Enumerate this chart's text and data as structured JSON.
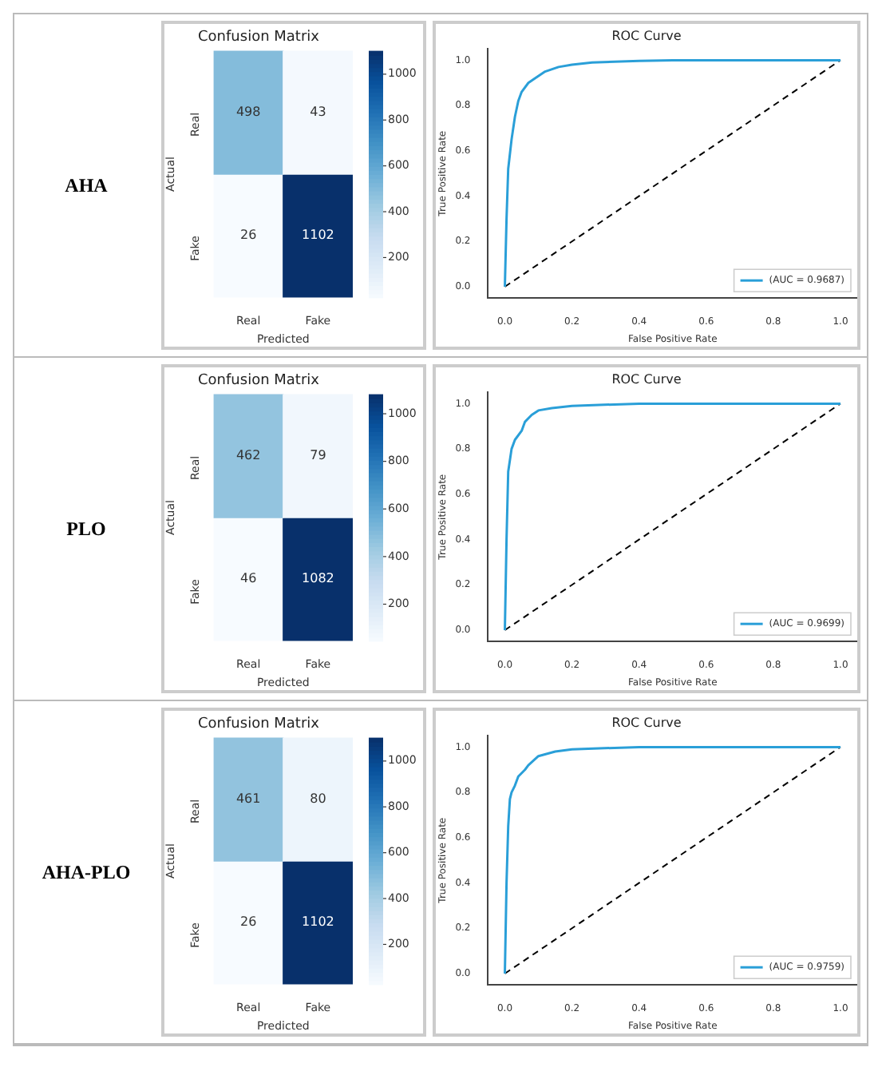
{
  "chart_data": [
    {
      "type": "heatmap",
      "title": "Confusion Matrix",
      "xlabel": "Predicted",
      "ylabel": "Actual",
      "annotations": [
        "AHA"
      ],
      "categories": [
        "Real",
        "Fake"
      ],
      "y_categories": [
        "Real",
        "Fake"
      ],
      "cells": [
        [
          498,
          43
        ],
        [
          26,
          1102
        ]
      ],
      "clim": [
        26,
        1102
      ],
      "cticks": [
        200,
        400,
        600,
        800,
        1000
      ],
      "data_labels": true
    },
    {
      "type": "line",
      "title": "ROC Curve",
      "xlabel": "False Positive Rate",
      "ylabel": "True Positive Rate",
      "legend": "bottom right",
      "xlim": [
        -0.05,
        1.05
      ],
      "ylim": [
        -0.05,
        1.05
      ],
      "xticks": [
        {
          "value": 0,
          "label": "0.0"
        },
        {
          "value": 0.2,
          "label": "0.2"
        },
        {
          "value": 0.4,
          "label": "0.4"
        },
        {
          "value": 0.6,
          "label": "0.6"
        },
        {
          "value": 0.8,
          "label": "0.8"
        },
        {
          "value": 1,
          "label": "1.0"
        }
      ],
      "yticks": [
        {
          "value": 0,
          "label": "0.0"
        },
        {
          "value": 0.2,
          "label": "0.2"
        },
        {
          "value": 0.4,
          "label": "0.4"
        },
        {
          "value": 0.6,
          "label": "0.6"
        },
        {
          "value": 0.8,
          "label": "0.8"
        },
        {
          "value": 1,
          "label": "1.0"
        }
      ],
      "series": [
        {
          "name": "(AUC = 0.9687)",
          "color": "#2a9fd8",
          "line_style": "solid",
          "x": [
            0,
            0.005,
            0.01,
            0.02,
            0.03,
            0.04,
            0.05,
            0.07,
            0.09,
            0.12,
            0.16,
            0.2,
            0.26,
            0.4,
            0.5,
            1
          ],
          "values": [
            0,
            0.3,
            0.52,
            0.65,
            0.75,
            0.82,
            0.86,
            0.9,
            0.92,
            0.95,
            0.97,
            0.98,
            0.99,
            0.997,
            1,
            1
          ]
        },
        {
          "color": "#000000",
          "line_style": "dashed",
          "x": [
            0,
            1
          ],
          "values": [
            0,
            1
          ]
        }
      ]
    },
    {
      "type": "heatmap",
      "title": "Confusion Matrix",
      "xlabel": "Predicted",
      "ylabel": "Actual",
      "annotations": [
        "PLO"
      ],
      "categories": [
        "Real",
        "Fake"
      ],
      "y_categories": [
        "Real",
        "Fake"
      ],
      "cells": [
        [
          462,
          79
        ],
        [
          46,
          1082
        ]
      ],
      "clim": [
        46,
        1082
      ],
      "cticks": [
        200,
        400,
        600,
        800,
        1000
      ],
      "data_labels": true
    },
    {
      "type": "line",
      "title": "ROC Curve",
      "xlabel": "False Positive Rate",
      "ylabel": "True Positive Rate",
      "legend": "bottom right",
      "xlim": [
        -0.05,
        1.05
      ],
      "ylim": [
        -0.05,
        1.05
      ],
      "xticks": [
        {
          "value": 0,
          "label": "0.0"
        },
        {
          "value": 0.2,
          "label": "0.2"
        },
        {
          "value": 0.4,
          "label": "0.4"
        },
        {
          "value": 0.6,
          "label": "0.6"
        },
        {
          "value": 0.8,
          "label": "0.8"
        },
        {
          "value": 1,
          "label": "1.0"
        }
      ],
      "yticks": [
        {
          "value": 0,
          "label": "0.0"
        },
        {
          "value": 0.2,
          "label": "0.2"
        },
        {
          "value": 0.4,
          "label": "0.4"
        },
        {
          "value": 0.6,
          "label": "0.6"
        },
        {
          "value": 0.8,
          "label": "0.8"
        },
        {
          "value": 1,
          "label": "1.0"
        }
      ],
      "series": [
        {
          "name": "(AUC = 0.9699)",
          "color": "#2a9fd8",
          "line_style": "solid",
          "x": [
            0,
            0.005,
            0.01,
            0.02,
            0.03,
            0.05,
            0.06,
            0.08,
            0.1,
            0.14,
            0.2,
            0.4,
            1
          ],
          "values": [
            0,
            0.4,
            0.7,
            0.8,
            0.84,
            0.88,
            0.92,
            0.95,
            0.97,
            0.98,
            0.99,
            1,
            1
          ]
        },
        {
          "color": "#000000",
          "line_style": "dashed",
          "x": [
            0,
            1
          ],
          "values": [
            0,
            1
          ]
        }
      ]
    },
    {
      "type": "heatmap",
      "title": "Confusion Matrix",
      "xlabel": "Predicted",
      "ylabel": "Actual",
      "annotations": [
        "AHA-PLO"
      ],
      "categories": [
        "Real",
        "Fake"
      ],
      "y_categories": [
        "Real",
        "Fake"
      ],
      "cells": [
        [
          461,
          80
        ],
        [
          26,
          1102
        ]
      ],
      "clim": [
        26,
        1102
      ],
      "cticks": [
        200,
        400,
        600,
        800,
        1000
      ],
      "data_labels": true
    },
    {
      "type": "line",
      "title": "ROC Curve",
      "xlabel": "False Positive Rate",
      "ylabel": "True Positive Rate",
      "legend": "bottom right",
      "xlim": [
        -0.05,
        1.05
      ],
      "ylim": [
        -0.05,
        1.05
      ],
      "xticks": [
        {
          "value": 0,
          "label": "0.0"
        },
        {
          "value": 0.2,
          "label": "0.2"
        },
        {
          "value": 0.4,
          "label": "0.4"
        },
        {
          "value": 0.6,
          "label": "0.6"
        },
        {
          "value": 0.8,
          "label": "0.8"
        },
        {
          "value": 1,
          "label": "1.0"
        }
      ],
      "yticks": [
        {
          "value": 0,
          "label": "0.0"
        },
        {
          "value": 0.2,
          "label": "0.2"
        },
        {
          "value": 0.4,
          "label": "0.4"
        },
        {
          "value": 0.6,
          "label": "0.6"
        },
        {
          "value": 0.8,
          "label": "0.8"
        },
        {
          "value": 1,
          "label": "1.0"
        }
      ],
      "series": [
        {
          "name": "(AUC = 0.9759)",
          "color": "#2a9fd8",
          "line_style": "solid",
          "x": [
            0,
            0.005,
            0.01,
            0.015,
            0.02,
            0.03,
            0.04,
            0.06,
            0.07,
            0.1,
            0.15,
            0.2,
            0.4,
            1
          ],
          "values": [
            0,
            0.4,
            0.65,
            0.77,
            0.8,
            0.83,
            0.87,
            0.9,
            0.92,
            0.96,
            0.98,
            0.99,
            1,
            1
          ]
        },
        {
          "color": "#000000",
          "line_style": "dashed",
          "x": [
            0,
            1
          ],
          "values": [
            0,
            1
          ]
        }
      ]
    }
  ]
}
